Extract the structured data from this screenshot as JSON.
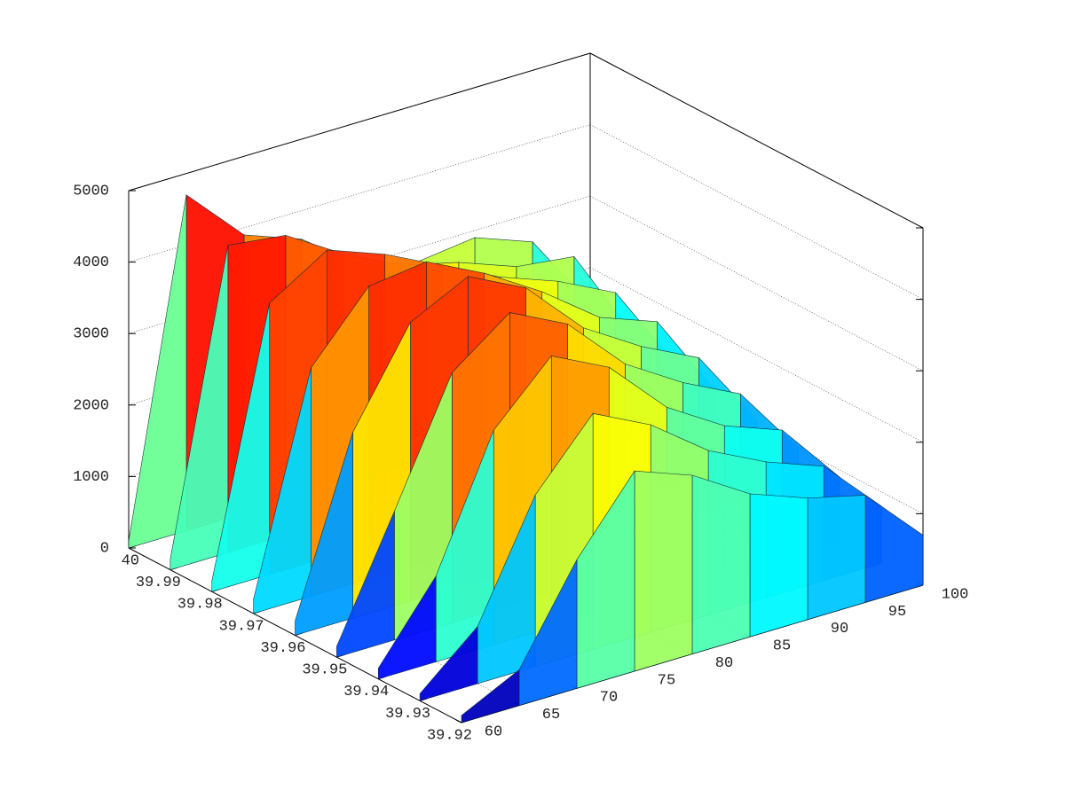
{
  "chart_data": {
    "type": "surface3d",
    "x": [
      60,
      65,
      70,
      75,
      80,
      85,
      90,
      95,
      100
    ],
    "y": [
      40,
      39.99,
      39.98,
      39.97,
      39.96,
      39.95,
      39.94,
      39.93,
      39.92
    ],
    "z": [
      [
        100,
        4700,
        3900,
        3600,
        3000,
        2800,
        2900,
        2600,
        1500
      ],
      [
        150,
        4300,
        4200,
        3700,
        3300,
        3100,
        2800,
        2700,
        1400
      ],
      [
        150,
        3800,
        4300,
        4000,
        3600,
        3200,
        2900,
        2500,
        1300
      ],
      [
        200,
        3200,
        4100,
        4200,
        3800,
        3300,
        2700,
        2400,
        1200
      ],
      [
        200,
        2600,
        3900,
        4300,
        3900,
        3100,
        2600,
        2200,
        1100
      ],
      [
        150,
        1800,
        3500,
        4100,
        3700,
        2900,
        2400,
        2000,
        1000
      ],
      [
        150,
        1200,
        3000,
        3800,
        3400,
        2600,
        2100,
        1800,
        900
      ],
      [
        100,
        800,
        2400,
        3300,
        2900,
        2300,
        1900,
        1600,
        800
      ],
      [
        100,
        500,
        1800,
        2800,
        2500,
        2000,
        1700,
        1500,
        700
      ]
    ],
    "xlim": [
      60,
      100
    ],
    "ylim": [
      39.92,
      40
    ],
    "zlim": [
      0,
      5000
    ],
    "xticks": [
      60,
      65,
      70,
      75,
      80,
      85,
      90,
      95,
      100
    ],
    "yticks": [
      40,
      39.99,
      39.98,
      39.97,
      39.96,
      39.95,
      39.94,
      39.93,
      39.92
    ],
    "zticks": [
      0,
      1000,
      2000,
      3000,
      4000,
      5000
    ],
    "grid": true,
    "colormap": "jet"
  }
}
